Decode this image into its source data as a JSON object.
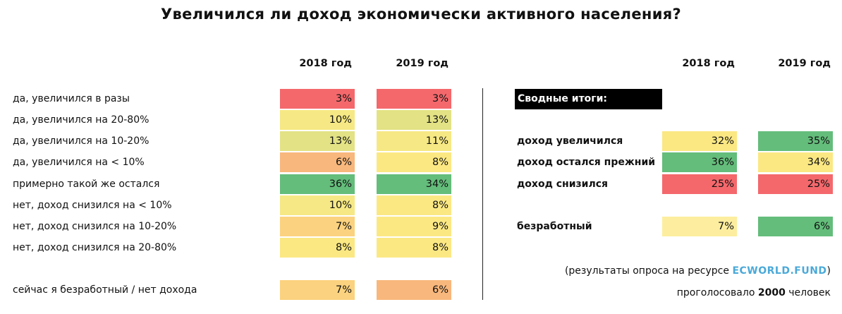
{
  "title": "Увеличился ли доход экономически активного населения?",
  "chart_data": [
    {
      "type": "table",
      "columns": [
        "2018 год",
        "2019 год"
      ],
      "rows": [
        {
          "label": "да, увеличился в разы",
          "values": [
            "3%",
            "3%"
          ],
          "colors": [
            "#f4686c",
            "#f4686c"
          ]
        },
        {
          "label": "да, увеличился на 20-80%",
          "values": [
            "10%",
            "13%"
          ],
          "colors": [
            "#f6e884",
            "#e3e285"
          ]
        },
        {
          "label": "да, увеличился на 10-20%",
          "values": [
            "13%",
            "11%"
          ],
          "colors": [
            "#e3e285",
            "#f6e884"
          ]
        },
        {
          "label": "да, увеличился на < 10%",
          "values": [
            "6%",
            "8%"
          ],
          "colors": [
            "#f8b77c",
            "#fbe883"
          ]
        },
        {
          "label": "примерно такой же остался",
          "values": [
            "36%",
            "34%"
          ],
          "colors": [
            "#64bd7b",
            "#64bd7b"
          ]
        },
        {
          "label": "нет, доход снизился на < 10%",
          "values": [
            "10%",
            "8%"
          ],
          "colors": [
            "#f6e884",
            "#fbe883"
          ]
        },
        {
          "label": "нет, доход снизился на 10-20%",
          "values": [
            "7%",
            "9%"
          ],
          "colors": [
            "#fbd27f",
            "#fbe883"
          ]
        },
        {
          "label": "нет, доход снизился на 20-80%",
          "values": [
            "8%",
            "8%"
          ],
          "colors": [
            "#fbe883",
            "#fbe883"
          ]
        },
        {
          "label": "сейчас я безработный / нет дохода",
          "values": [
            "7%",
            "6%"
          ],
          "colors": [
            "#fbd27f",
            "#f8b77c"
          ]
        }
      ]
    },
    {
      "type": "table",
      "title": "Сводные итоги:",
      "columns": [
        "2018 год",
        "2019 год"
      ],
      "rows": [
        {
          "label": "доход увеличился",
          "values": [
            "32%",
            "35%"
          ],
          "colors": [
            "#fbe883",
            "#64bd7b"
          ]
        },
        {
          "label": "доход остался прежний",
          "values": [
            "36%",
            "34%"
          ],
          "colors": [
            "#64bd7b",
            "#fbe883"
          ]
        },
        {
          "label": "доход снизился",
          "values": [
            "25%",
            "25%"
          ],
          "colors": [
            "#f4686c",
            "#f4686c"
          ]
        },
        {
          "label": "безработный",
          "values": [
            "7%",
            "6%"
          ],
          "colors": [
            "#fcee9e",
            "#64bd7b"
          ]
        }
      ]
    }
  ],
  "notes": {
    "source_prefix": "(результаты опроса на ресурсе ",
    "source_link": "ECWORLD.FUND",
    "source_suffix": ")",
    "votes_prefix": "проголосовало ",
    "votes_count": "2000",
    "votes_suffix": " человек"
  }
}
